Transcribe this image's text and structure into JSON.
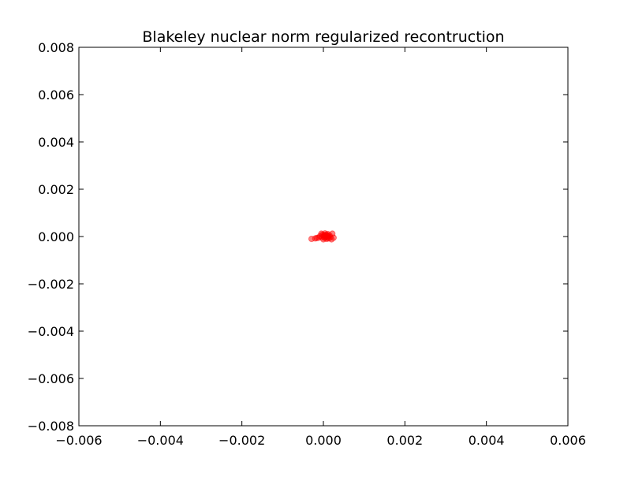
{
  "chart_data": {
    "type": "scatter",
    "title": "Blakeley nuclear norm regularized recontruction",
    "xlabel": "",
    "ylabel": "",
    "xlim": [
      -0.006,
      0.006
    ],
    "ylim": [
      -0.008,
      0.008
    ],
    "x_ticks": [
      -0.006,
      -0.004,
      -0.002,
      0.0,
      0.002,
      0.004,
      0.006
    ],
    "x_tick_labels": [
      "−0.006",
      "−0.004",
      "−0.002",
      "0.000",
      "0.002",
      "0.004",
      "0.006"
    ],
    "y_ticks": [
      0.008,
      0.006,
      0.004,
      0.002,
      0.0,
      -0.002,
      -0.004,
      -0.006,
      -0.008
    ],
    "y_tick_labels": [
      "0.008",
      "0.006",
      "0.004",
      "0.002",
      "0.000",
      "−0.002",
      "−0.004",
      "−0.006",
      "−0.008"
    ],
    "grid": false,
    "marker_color": "#ff0000",
    "marker_alpha": 0.5,
    "points": [
      {
        "x": -0.00029,
        "y": -0.0001
      },
      {
        "x": -0.0002,
        "y": -8e-05
      },
      {
        "x": -0.00016,
        "y": -6e-05
      },
      {
        "x": -0.00012,
        "y": -5e-05
      },
      {
        "x": -8e-05,
        "y": 2e-05
      },
      {
        "x": -5e-05,
        "y": 0.00012
      },
      {
        "x": -4e-05,
        "y": -3e-05
      },
      {
        "x": -2e-05,
        "y": 8e-05
      },
      {
        "x": 0.0,
        "y": -0.00012
      },
      {
        "x": 1e-05,
        "y": 0.0
      },
      {
        "x": 2e-05,
        "y": 5e-05
      },
      {
        "x": 3e-05,
        "y": -6e-05
      },
      {
        "x": 4e-05,
        "y": 0.00013
      },
      {
        "x": 5e-05,
        "y": 1e-05
      },
      {
        "x": 6e-05,
        "y": -2e-05
      },
      {
        "x": 7e-05,
        "y": 8e-05
      },
      {
        "x": 8e-05,
        "y": -0.0001
      },
      {
        "x": 9e-05,
        "y": 3e-05
      },
      {
        "x": 0.0001,
        "y": -4e-05
      },
      {
        "x": 0.00011,
        "y": 0.0001
      },
      {
        "x": 0.00012,
        "y": 0.0
      },
      {
        "x": 0.00013,
        "y": -8e-05
      },
      {
        "x": 0.00015,
        "y": 5e-05
      },
      {
        "x": 0.00017,
        "y": -3e-05
      },
      {
        "x": 0.0002,
        "y": -0.00012
      },
      {
        "x": 0.00022,
        "y": 0.00012
      },
      {
        "x": 0.00025,
        "y": -5e-05
      }
    ]
  }
}
